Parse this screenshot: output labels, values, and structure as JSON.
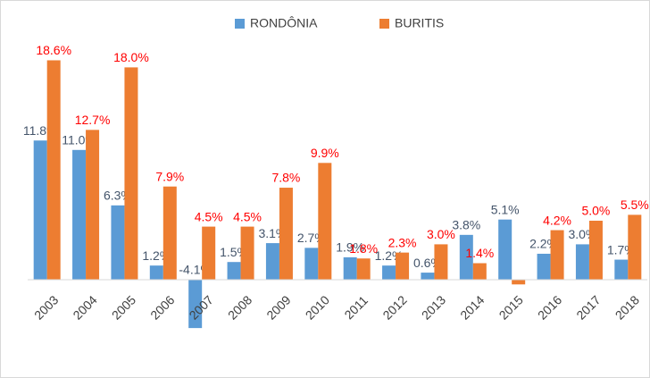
{
  "chart_data": {
    "type": "bar",
    "categories": [
      "2003",
      "2004",
      "2005",
      "2006",
      "2007",
      "2008",
      "2009",
      "2010",
      "2011",
      "2012",
      "2013",
      "2014",
      "2015",
      "2016",
      "2017",
      "2018"
    ],
    "series": [
      {
        "name": "RONDÔNIA",
        "color": "#5b9bd5",
        "values": [
          11.8,
          11.0,
          6.3,
          1.2,
          -4.1,
          1.5,
          3.1,
          2.7,
          1.9,
          1.2,
          0.6,
          3.8,
          5.1,
          2.2,
          3.0,
          1.7
        ],
        "value_labels": [
          "11.8%",
          "11.0%",
          "6.3%",
          "1.2%",
          "-4.1%",
          "1.5%",
          "3.1%",
          "2.7%",
          "1.9%",
          "1.2%",
          "0.6%",
          "3.8%",
          "5.1%",
          "2.2%",
          "3.0%",
          "1.7%"
        ]
      },
      {
        "name": "BURITIS",
        "color": "#ed7d31",
        "values": [
          18.6,
          12.7,
          18.0,
          7.9,
          4.5,
          4.5,
          7.8,
          9.9,
          1.8,
          2.3,
          3.0,
          1.4,
          -0.4,
          4.2,
          5.0,
          5.5
        ],
        "value_labels": [
          "18.6%",
          "12.7%",
          "18.0%",
          "7.9%",
          "4.5%",
          "4.5%",
          "7.8%",
          "9.9%",
          "1.8%",
          "2.3%",
          "3.0%",
          "1.4%",
          null,
          "4.2%",
          "5.0%",
          "5.5%"
        ]
      }
    ],
    "ylim": [
      -5,
      20
    ]
  }
}
